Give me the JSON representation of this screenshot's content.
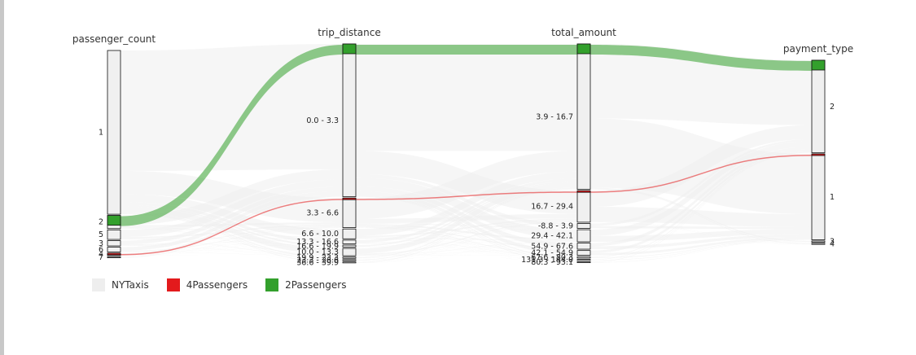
{
  "chart_data": {
    "type": "parallel-categories",
    "dimensions": [
      {
        "name": "passenger_count",
        "categories": [
          {
            "label": "1",
            "share": 0.685
          },
          {
            "label": "2",
            "share": 0.055
          },
          {
            "label": "5",
            "share": 0.04
          },
          {
            "label": "3",
            "share": 0.022
          },
          {
            "label": "6",
            "share": 0.02
          },
          {
            "label": "4",
            "share": 0.01
          },
          {
            "label": "7",
            "share": 0.002
          }
        ]
      },
      {
        "name": "trip_distance",
        "categories": [
          {
            "label": "0.0 - 3.3",
            "share": 0.62
          },
          {
            "label": "3.3 - 6.6",
            "share": 0.12
          },
          {
            "label": "6.6 - 10.0",
            "share": 0.04
          },
          {
            "label": "13.3 - 16.6",
            "share": 0.015
          },
          {
            "label": "16.6 - 19.9",
            "share": 0.008
          },
          {
            "label": "10.0 - 13.3",
            "share": 0.03
          },
          {
            "label": "19.9 - 23.3",
            "share": 0.005
          },
          {
            "label": "23.3 - 26.6",
            "share": 0.003
          },
          {
            "label": "36.6 - 39.9",
            "share": 0.002
          }
        ]
      },
      {
        "name": "total_amount",
        "categories": [
          {
            "label": "3.9 - 16.7",
            "share": 0.6
          },
          {
            "label": "16.7 - 29.4",
            "share": 0.13
          },
          {
            "label": "-8.8 - 3.9",
            "share": 0.02
          },
          {
            "label": "29.4 - 42.1",
            "share": 0.05
          },
          {
            "label": "54.9 - 67.6",
            "share": 0.025
          },
          {
            "label": "42.1 - 54.9",
            "share": 0.02
          },
          {
            "label": "67.6 - 80.3",
            "share": 0.006
          },
          {
            "label": "131.3 - 144.0",
            "share": 0.003
          },
          {
            "label": "80.3 - 93.1",
            "share": 0.003
          }
        ]
      },
      {
        "name": "payment_type",
        "categories": [
          {
            "label": "2",
            "share": 0.42
          },
          {
            "label": "1",
            "share": 0.39
          },
          {
            "label": "3",
            "share": 0.006
          },
          {
            "label": "4",
            "share": 0.004
          }
        ]
      }
    ],
    "highlights": {
      "2Passengers": {
        "color": "#33a02c",
        "path": [
          "2",
          "0.0 - 3.3",
          "3.9 - 16.7",
          "2"
        ]
      },
      "4Passengers": {
        "color": "#e31a1c",
        "path": [
          "4",
          "3.3 - 6.6",
          "16.7 - 29.4",
          "1"
        ]
      }
    },
    "base_color": "#eeeeee",
    "legend": [
      {
        "label": "NYTaxis",
        "color": "#eeeeee"
      },
      {
        "label": "4Passengers",
        "color": "#e31a1c"
      },
      {
        "label": "2Passengers",
        "color": "#33a02c"
      }
    ],
    "legend_position": "bottom-left"
  }
}
